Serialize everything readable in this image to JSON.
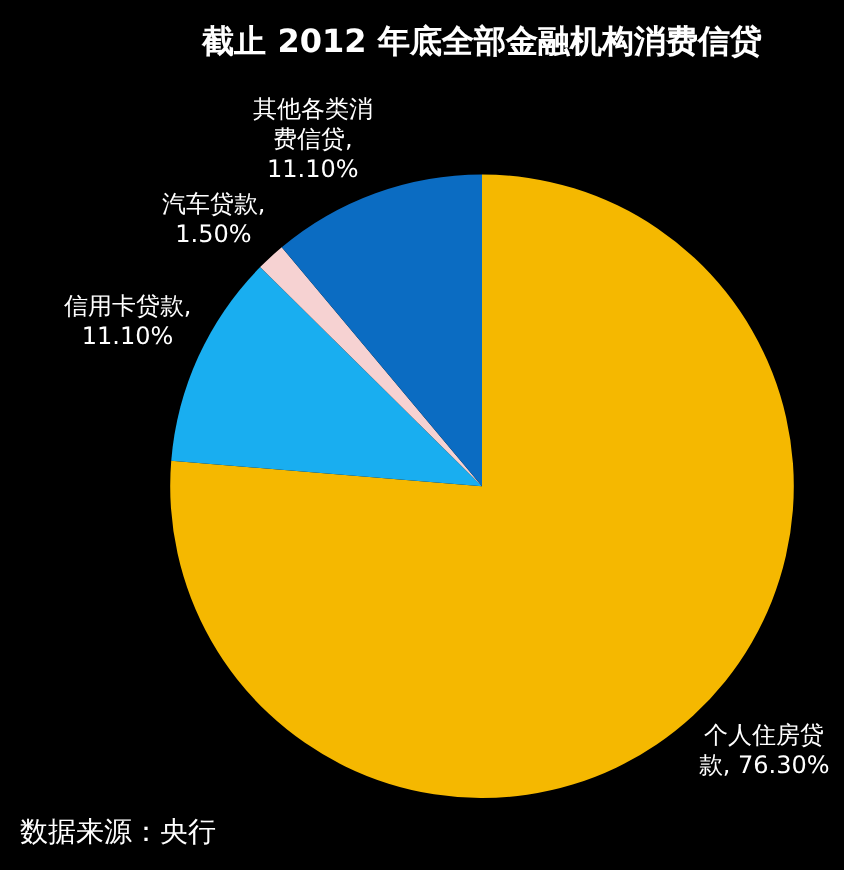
{
  "chart_data": {
    "type": "pie",
    "title": "截止 2012 年底全部金融机构消费信贷",
    "categories": [
      "个人住房贷款",
      "信用卡贷款",
      "汽车贷款",
      "其他各类消费信贷"
    ],
    "values": [
      76.3,
      11.1,
      1.5,
      11.1
    ],
    "value_labels": [
      ", 76.30%",
      ", 11.10%",
      ", 1.50%",
      ", 11.10%"
    ],
    "colors": [
      "#f5b800",
      "#19aef0",
      "#f6d2d2",
      "#0b6cc2"
    ],
    "annotations": [
      "数据来源：央行"
    ],
    "legend": false
  }
}
